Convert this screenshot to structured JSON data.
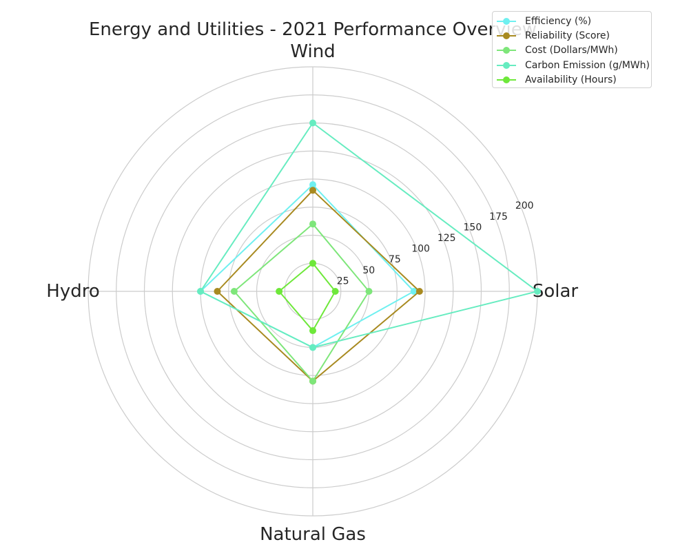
{
  "chart_data": {
    "type": "radar",
    "title": "Energy and Utilities - 2021 Performance Overview",
    "categories": [
      "Solar",
      "Wind",
      "Hydro",
      "Natural Gas"
    ],
    "rlim": [
      0,
      200
    ],
    "radial_ticks": [
      25,
      50,
      75,
      100,
      125,
      150,
      175,
      200
    ],
    "grid": true,
    "legend_position": "top-right",
    "series": [
      {
        "name": "Efficiency (%)",
        "color": "#6ff0f0",
        "values": [
          90,
          95,
          100,
          50
        ]
      },
      {
        "name": "Reliability (Score)",
        "color": "#a88a20",
        "values": [
          95,
          90,
          85,
          80
        ]
      },
      {
        "name": "Cost (Dollars/MWh)",
        "color": "#7ee67a",
        "values": [
          50,
          60,
          70,
          80
        ]
      },
      {
        "name": "Carbon Emission (g/MWh)",
        "color": "#66ecc0",
        "values": [
          200,
          150,
          100,
          50
        ]
      },
      {
        "name": "Availability (Hours)",
        "color": "#6ee83a",
        "values": [
          20,
          25,
          30,
          35
        ]
      }
    ]
  }
}
